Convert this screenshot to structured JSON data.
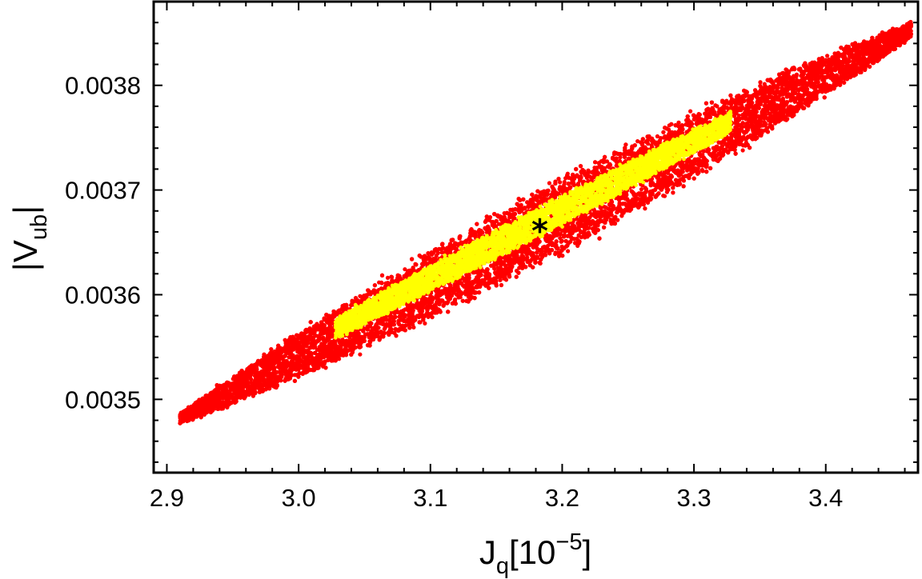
{
  "chart_data": {
    "type": "scatter",
    "title": "",
    "xlabel": {
      "main": "J",
      "sub": "q",
      "rest": "[10",
      "sup": "−5",
      "close": "]"
    },
    "ylabel": {
      "left": "|V",
      "sub": "ub",
      "right": "|"
    },
    "xlim": [
      2.89,
      3.47
    ],
    "ylim": [
      0.00343,
      0.00388
    ],
    "xticks": [
      {
        "value": 2.9,
        "label": "2.9"
      },
      {
        "value": 3.0,
        "label": "3.0"
      },
      {
        "value": 3.1,
        "label": "3.1"
      },
      {
        "value": 3.2,
        "label": "3.2"
      },
      {
        "value": 3.3,
        "label": "3.3"
      },
      {
        "value": 3.4,
        "label": "3.4"
      }
    ],
    "yticks": [
      {
        "value": 0.0035,
        "label": "0.0035"
      },
      {
        "value": 0.0036,
        "label": "0.0036"
      },
      {
        "value": 0.0037,
        "label": "0.0037"
      },
      {
        "value": 0.0038,
        "label": "0.0038"
      }
    ],
    "grid": false,
    "series": [
      {
        "color": "#ff0000",
        "region": "outer",
        "x_range": [
          2.91,
          3.465
        ],
        "centerline": [
          [
            2.91,
            0.003482
          ],
          [
            3.465,
            0.003853
          ]
        ],
        "half_width_y": [
          4.5e-06,
          3.2e-05,
          6.5e-06
        ],
        "points": 16000
      },
      {
        "color": "#ffff00",
        "region": "inner",
        "x_range": [
          3.028,
          3.328
        ],
        "centerline": [
          [
            3.028,
            0.003568
          ],
          [
            3.328,
            0.003765
          ]
        ],
        "half_width_y": [
          8.5e-06,
          1.25e-05,
          8.5e-06
        ],
        "points": 4200
      }
    ],
    "best_fit": {
      "x": 3.183,
      "y": 0.003665,
      "symbol": "*",
      "color": "#000000"
    }
  }
}
